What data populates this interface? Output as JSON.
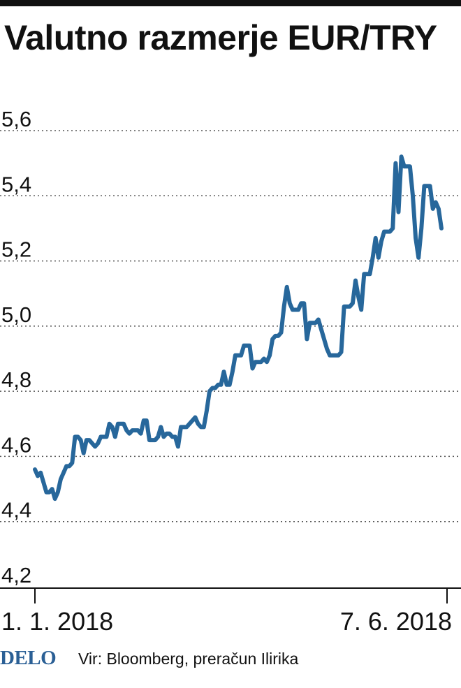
{
  "title": "Valutno razmerje EUR/TRY",
  "colors": {
    "line": "#27679b",
    "grid": "#555555",
    "text": "#111111",
    "logo": "#2a5f95"
  },
  "footer": {
    "logo": "DELO",
    "source": "Vir: Bloomberg, preračun Ilirika"
  },
  "chart_data": {
    "type": "line",
    "title": "Valutno razmerje EUR/TRY",
    "xlabel": "",
    "ylabel": "",
    "ylim": [
      4.2,
      5.6
    ],
    "yticks": [
      "5,6",
      "5,4",
      "5,2",
      "5,0",
      "4,8",
      "4,6",
      "4,4",
      "4,2"
    ],
    "xticks": [
      "1. 1. 2018",
      "7. 6. 2018"
    ],
    "grid": "horizontal dotted",
    "legend": "none",
    "x_range": [
      "2018-01-01",
      "2018-06-07"
    ],
    "series": [
      {
        "values": [
          4.56,
          4.54,
          4.55,
          4.52,
          4.49,
          4.49,
          4.5,
          4.47,
          4.49,
          4.53,
          4.55,
          4.57,
          4.57,
          4.58,
          4.66,
          4.66,
          4.65,
          4.61,
          4.65,
          4.65,
          4.64,
          4.63,
          4.64,
          4.66,
          4.66,
          4.66,
          4.7,
          4.69,
          4.66,
          4.7,
          4.7,
          4.7,
          4.68,
          4.67,
          4.68,
          4.68,
          4.68,
          4.67,
          4.71,
          4.71,
          4.65,
          4.65,
          4.65,
          4.66,
          4.69,
          4.66,
          4.67,
          4.67,
          4.66,
          4.66,
          4.63,
          4.69,
          4.69,
          4.69,
          4.7,
          4.71,
          4.72,
          4.7,
          4.69,
          4.69,
          4.74,
          4.8,
          4.81,
          4.81,
          4.82,
          4.82,
          4.86,
          4.82,
          4.82,
          4.86,
          4.91,
          4.91,
          4.91,
          4.94,
          4.94,
          4.94,
          4.87,
          4.89,
          4.89,
          4.89,
          4.9,
          4.89,
          4.91,
          4.96,
          4.97,
          4.97,
          4.98,
          5.06,
          5.12,
          5.07,
          5.05,
          5.05,
          5.05,
          5.07,
          5.07,
          4.96,
          5.01,
          5.01,
          5.01,
          5.02,
          4.99,
          4.96,
          4.93,
          4.91,
          4.91,
          4.91,
          4.91,
          4.92,
          5.06,
          5.06,
          5.06,
          5.07,
          5.14,
          5.09,
          5.05,
          5.16,
          5.16,
          5.16,
          5.21,
          5.27,
          5.21,
          5.26,
          5.29,
          5.29,
          5.29,
          5.3,
          5.5,
          5.35,
          5.52,
          5.49,
          5.49,
          5.49,
          5.4,
          5.27,
          5.21,
          5.3,
          5.43,
          5.43,
          5.43,
          5.36,
          5.38,
          5.36,
          5.3
        ]
      }
    ]
  }
}
